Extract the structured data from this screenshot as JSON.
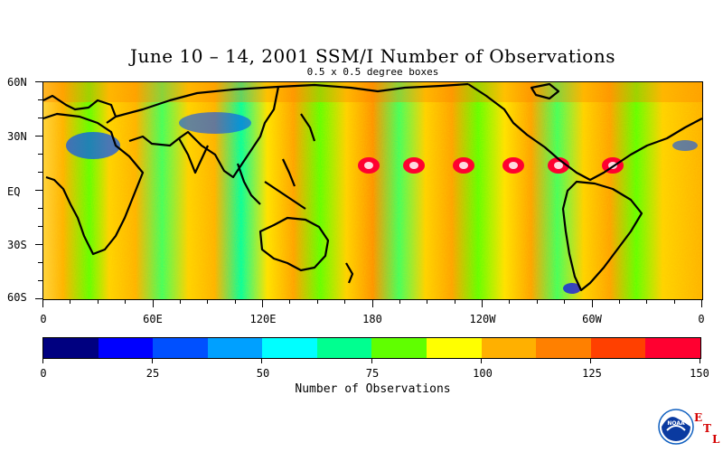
{
  "title": "June 10 – 14, 2001 SSM/I Number of Observations",
  "subtitle": "0.5 x 0.5 degree boxes",
  "map": {
    "lat_labels": [
      "60N",
      "30N",
      "EQ",
      "30S",
      "60S"
    ],
    "lon_labels": [
      "0",
      "60E",
      "120E",
      "180",
      "120W",
      "60W",
      "0"
    ]
  },
  "colorbar": {
    "title": "Number of Observations",
    "labels": [
      "0",
      "25",
      "50",
      "75",
      "100",
      "125",
      "150"
    ],
    "range": [
      0,
      150
    ],
    "colors": [
      "#000080",
      "#0000ff",
      "#0050ff",
      "#00a0ff",
      "#00ffff",
      "#00ff90",
      "#60ff00",
      "#ffff00",
      "#ffb000",
      "#ff8000",
      "#ff4000",
      "#ff0030"
    ]
  },
  "logo": {
    "text": "NOAA",
    "icon": "noaa-logo",
    "etl_letters": [
      "E",
      "T",
      "L"
    ]
  }
}
